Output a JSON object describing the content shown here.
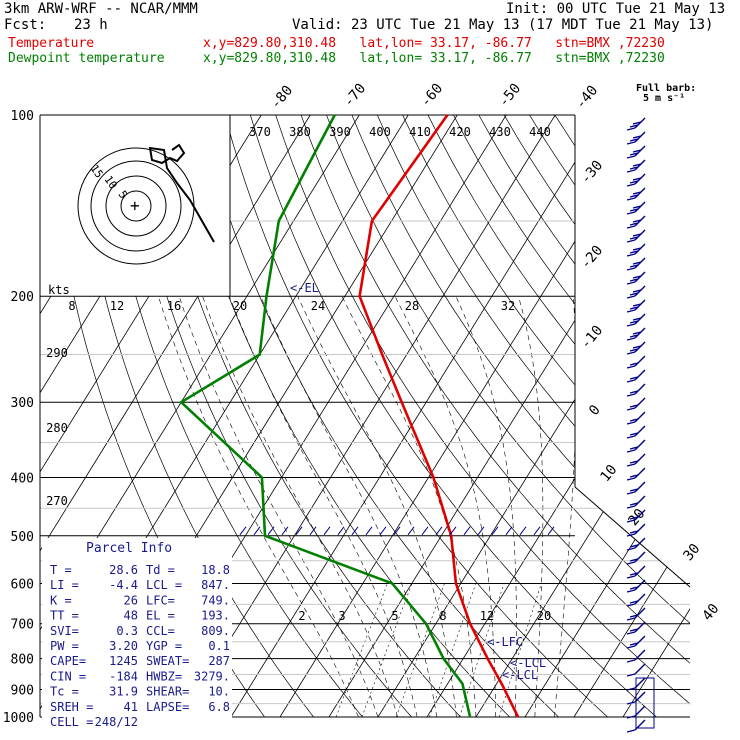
{
  "header": {
    "model": "3km ARW-WRF -- NCAR/MMM",
    "init": "Init: 00 UTC Tue 21 May 13",
    "fcst_label": "Fcst:",
    "fcst_value": "23 h",
    "valid": "Valid: 23 UTC Tue 21 May 13 (17 MDT Tue 21 May 13)",
    "temp_label": "Temperature",
    "dew_label": "Dewpoint temperature",
    "loc_text": "x,y=829.80,310.48   lat,lon= 33.17, -86.77   stn=BMX ,72230",
    "barb_title": "Full barb:",
    "barb_unit": "5 m s⁻¹"
  },
  "chart_data": {
    "type": "skew-t log-p",
    "colors": {
      "temperature": "#e00000",
      "dewpoint": "#008000",
      "hodograph": "#000000",
      "wind": "#00008b",
      "text": "#1a1a8c",
      "grid": "#000000"
    },
    "pressure_levels": [
      100,
      200,
      300,
      400,
      500,
      600,
      700,
      800,
      900,
      1000
    ],
    "isotherm_labels": [
      "-80",
      "-70",
      "-60",
      "-50",
      "-40",
      "-30",
      "-20",
      "-10",
      "0",
      "10",
      "20",
      "30",
      "40"
    ],
    "theta_labels": [
      "370",
      "380",
      "390",
      "400",
      "410",
      "420",
      "430",
      "440"
    ],
    "theta_labels_mid": [
      "290",
      "280",
      "270"
    ],
    "mixing_ratio_labels": [
      "2",
      "3",
      "5",
      "8",
      "12",
      "20"
    ],
    "hodo_labels": {
      "kts": "kts",
      "speeds": [
        "8",
        "12",
        "16",
        "20",
        "24",
        "28",
        "32"
      ],
      "rings": [
        "15",
        "10",
        "5"
      ]
    },
    "annotations": {
      "el": "<-EL",
      "lfc": "<-LFC",
      "lcl1": "<-LCL",
      "lcl2": "<-LCL"
    },
    "temperature_profile": [
      {
        "p": 100,
        "t": -62
      },
      {
        "p": 150,
        "t": -64
      },
      {
        "p": 200,
        "t": -57
      },
      {
        "p": 250,
        "t": -45
      },
      {
        "p": 300,
        "t": -35
      },
      {
        "p": 400,
        "t": -19
      },
      {
        "p": 500,
        "t": -8
      },
      {
        "p": 600,
        "t": -1
      },
      {
        "p": 700,
        "t": 7
      },
      {
        "p": 800,
        "t": 15
      },
      {
        "p": 880,
        "t": 21
      },
      {
        "p": 1000,
        "t": 28.6
      }
    ],
    "dewpoint_profile": [
      {
        "p": 100,
        "t": -85
      },
      {
        "p": 150,
        "t": -83
      },
      {
        "p": 200,
        "t": -76
      },
      {
        "p": 250,
        "t": -70
      },
      {
        "p": 300,
        "t": -80
      },
      {
        "p": 400,
        "t": -54
      },
      {
        "p": 500,
        "t": -46
      },
      {
        "p": 600,
        "t": -14
      },
      {
        "p": 700,
        "t": -2
      },
      {
        "p": 800,
        "t": 6
      },
      {
        "p": 880,
        "t": 13
      },
      {
        "p": 1000,
        "t": 18.8
      }
    ],
    "wind_barbs": [
      {
        "p": 120,
        "dir": 250,
        "spd": 15
      },
      {
        "p": 200,
        "dir": 250,
        "spd": 12.5
      },
      {
        "p": 300,
        "dir": 250,
        "spd": 10
      },
      {
        "p": 400,
        "dir": 245,
        "spd": 10
      },
      {
        "p": 500,
        "dir": 240,
        "spd": 10
      },
      {
        "p": 600,
        "dir": 235,
        "spd": 7.5
      },
      {
        "p": 700,
        "dir": 230,
        "spd": 7.5
      },
      {
        "p": 800,
        "dir": 220,
        "spd": 5
      },
      {
        "p": 900,
        "dir": 200,
        "spd": 5
      },
      {
        "p": 1000,
        "dir": 190,
        "spd": 2.5
      }
    ],
    "parcel_info": {
      "title": "Parcel Info",
      "rows": [
        [
          "T  =",
          "28.6",
          "Td =",
          "18.8"
        ],
        [
          "LI =",
          "-4.4",
          "LCL =",
          "847."
        ],
        [
          "K  =",
          "26",
          "LFC=",
          "749."
        ],
        [
          "TT =",
          "48",
          "EL =",
          "193."
        ],
        [
          "SVI=",
          "0.3",
          "CCL=",
          "809."
        ],
        [
          "PW =",
          "3.20",
          "YGP =",
          "0.1"
        ],
        [
          "CAPE=",
          "1245",
          "SWEAT=",
          "287"
        ],
        [
          "CIN =",
          "-184",
          "HWBZ=",
          "3279."
        ],
        [
          "Tc =",
          "31.9",
          "SHEAR=",
          "10."
        ],
        [
          "SREH =",
          "41",
          "LAPSE=",
          "6.8"
        ],
        [
          "CELL =",
          "248/12",
          "",
          ""
        ]
      ]
    }
  }
}
